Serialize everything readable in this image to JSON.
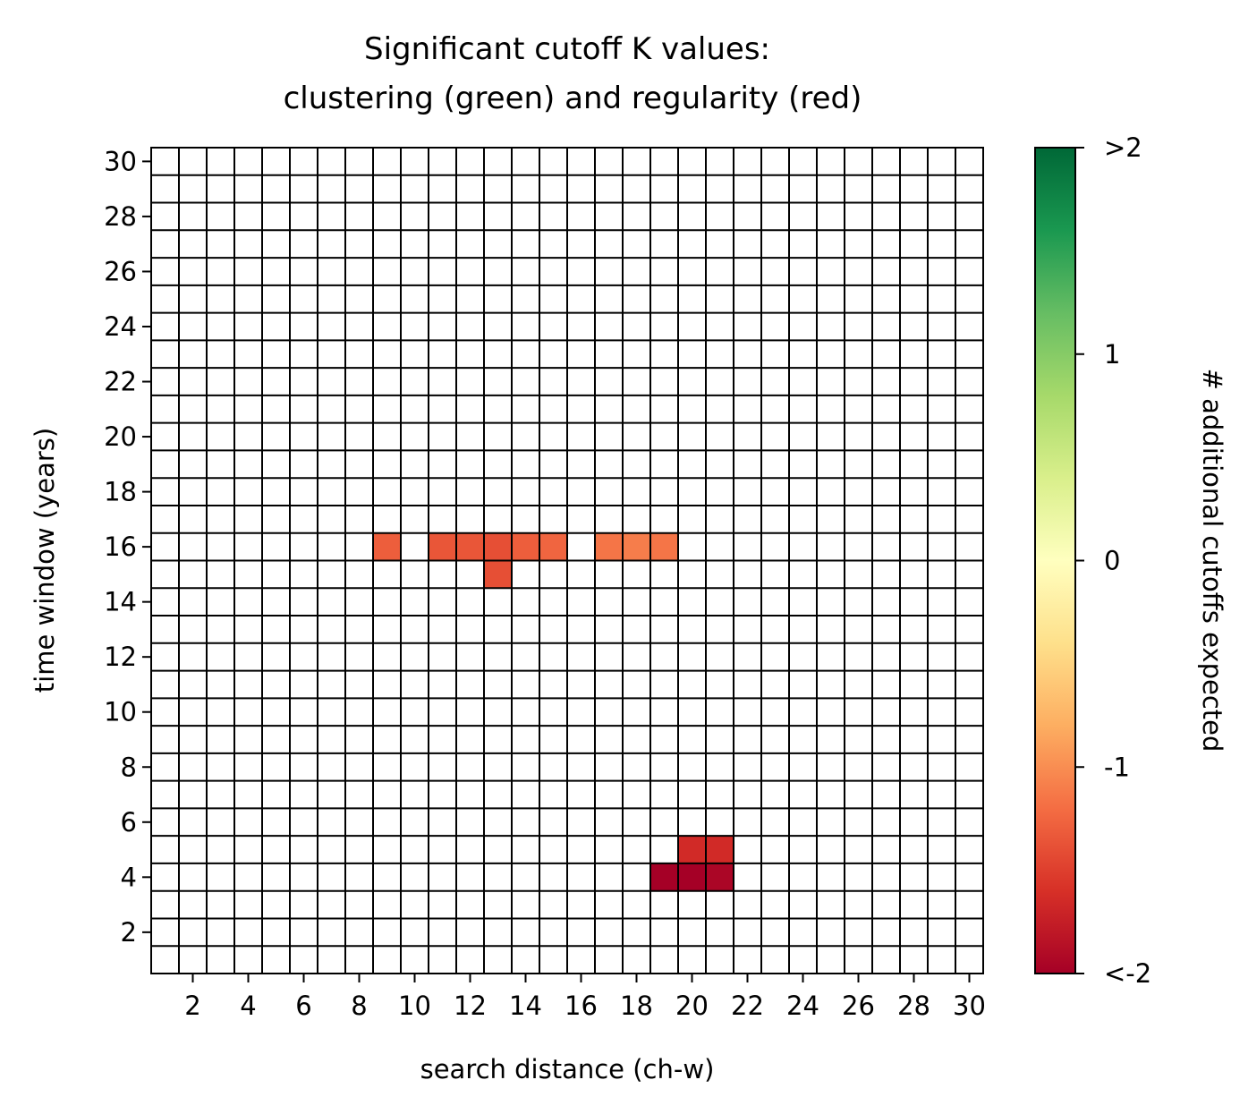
{
  "chart_data": {
    "type": "heatmap",
    "title_line1": "Significant cutoff K values:",
    "title_line2": "clustering (green) and regularity (red)",
    "xlabel": "search distance (ch-w)",
    "ylabel": "time window (years)",
    "x_range": [
      1,
      30
    ],
    "y_range": [
      1,
      30
    ],
    "x_ticks": [
      2,
      4,
      6,
      8,
      10,
      12,
      14,
      16,
      18,
      20,
      22,
      24,
      26,
      28,
      30
    ],
    "y_ticks": [
      2,
      4,
      6,
      8,
      10,
      12,
      14,
      16,
      18,
      20,
      22,
      24,
      26,
      28,
      30
    ],
    "colormap": "RdYlGn",
    "vmin": -2,
    "vmax": 2,
    "grid": true,
    "colorbar": {
      "label": "# additional cutoffs expected",
      "ticks": [
        {
          "value": -2,
          "label": "<-2"
        },
        {
          "value": -1,
          "label": "-1"
        },
        {
          "value": 0,
          "label": "0"
        },
        {
          "value": 1,
          "label": "1"
        },
        {
          "value": 2,
          "label": ">2"
        }
      ]
    },
    "cells": [
      {
        "x": 9,
        "y": 16,
        "value": -1.3
      },
      {
        "x": 11,
        "y": 16,
        "value": -1.35
      },
      {
        "x": 12,
        "y": 16,
        "value": -1.35
      },
      {
        "x": 13,
        "y": 16,
        "value": -1.4
      },
      {
        "x": 14,
        "y": 16,
        "value": -1.3
      },
      {
        "x": 15,
        "y": 16,
        "value": -1.25
      },
      {
        "x": 13,
        "y": 15,
        "value": -1.4
      },
      {
        "x": 17,
        "y": 16,
        "value": -1.15
      },
      {
        "x": 18,
        "y": 16,
        "value": -1.1
      },
      {
        "x": 19,
        "y": 16,
        "value": -1.15
      },
      {
        "x": 20,
        "y": 5,
        "value": -1.65
      },
      {
        "x": 21,
        "y": 5,
        "value": -1.65
      },
      {
        "x": 19,
        "y": 4,
        "value": -2.0
      },
      {
        "x": 20,
        "y": 4,
        "value": -2.0
      },
      {
        "x": 21,
        "y": 4,
        "value": -1.95
      }
    ]
  }
}
